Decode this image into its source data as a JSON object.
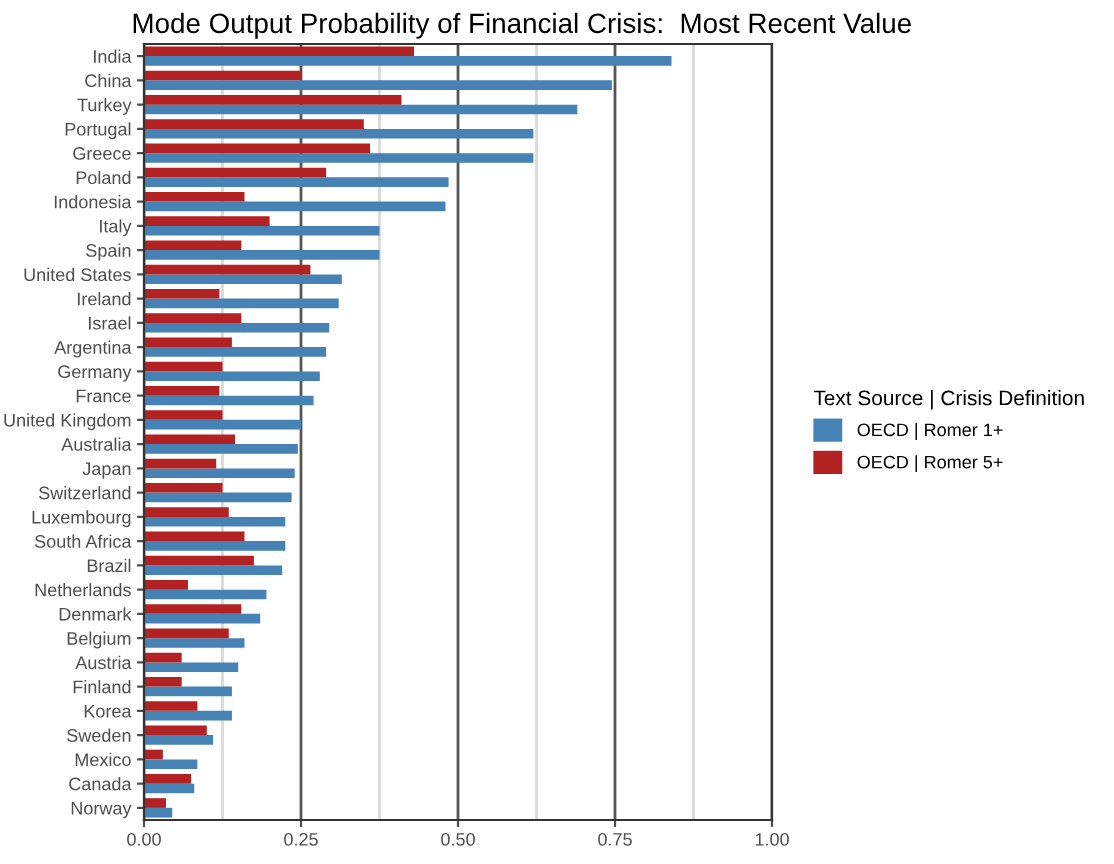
{
  "chart_data": {
    "type": "bar",
    "orientation": "horizontal",
    "title": "Mode Output Probability of Financial Crisis:  Most Recent Value",
    "legend_title": "Text Source | Crisis Definition",
    "legend": "right",
    "grid": "x",
    "categories": [
      "India",
      "China",
      "Turkey",
      "Portugal",
      "Greece",
      "Poland",
      "Indonesia",
      "Italy",
      "Spain",
      "United States",
      "Ireland",
      "Israel",
      "Argentina",
      "Germany",
      "France",
      "United Kingdom",
      "Australia",
      "Japan",
      "Switzerland",
      "Luxembourg",
      "South Africa",
      "Brazil",
      "Netherlands",
      "Denmark",
      "Belgium",
      "Austria",
      "Finland",
      "Korea",
      "Sweden",
      "Mexico",
      "Canada",
      "Norway"
    ],
    "series": [
      {
        "name": "OECD | Romer 1+",
        "color": "#4682b4",
        "values": [
          0.84,
          0.745,
          0.69,
          0.62,
          0.62,
          0.485,
          0.48,
          0.375,
          0.375,
          0.315,
          0.31,
          0.295,
          0.29,
          0.28,
          0.27,
          0.25,
          0.245,
          0.24,
          0.235,
          0.225,
          0.225,
          0.22,
          0.195,
          0.185,
          0.16,
          0.15,
          0.14,
          0.14,
          0.11,
          0.085,
          0.08,
          0.045
        ]
      },
      {
        "name": "OECD | Romer 5+",
        "color": "#b22222",
        "values": [
          0.43,
          0.25,
          0.41,
          0.35,
          0.36,
          0.29,
          0.16,
          0.2,
          0.155,
          0.265,
          0.12,
          0.155,
          0.14,
          0.125,
          0.12,
          0.125,
          0.145,
          0.115,
          0.125,
          0.135,
          0.16,
          0.175,
          0.07,
          0.155,
          0.135,
          0.06,
          0.06,
          0.085,
          0.1,
          0.03,
          0.075,
          0.035
        ]
      }
    ],
    "xlim": [
      0,
      1
    ],
    "xticks": [
      {
        "value": 0,
        "label": "0.00"
      },
      {
        "value": 0.25,
        "label": "0.25"
      },
      {
        "value": 0.5,
        "label": "0.50"
      },
      {
        "value": 0.75,
        "label": "0.75"
      },
      {
        "value": 1,
        "label": "1.00"
      }
    ]
  }
}
